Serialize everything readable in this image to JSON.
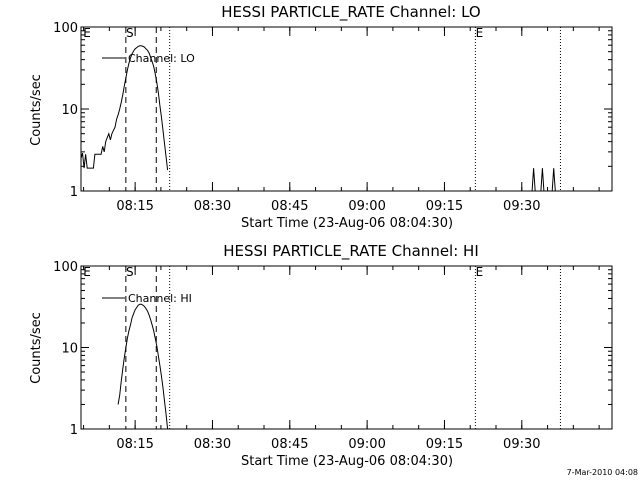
{
  "footer": {
    "timestamp": "7-Mar-2010 04:08"
  },
  "chart_data": [
    {
      "type": "line",
      "title": "HESSI PARTICLE_RATE Channel: LO",
      "xlabel": "Start Time (23-Aug-06 08:04:30)",
      "ylabel": "Counts/sec",
      "yscale": "log",
      "ylim": [
        1,
        100
      ],
      "xlim_minutes": [
        0,
        103
      ],
      "x_ticks": [
        {
          "label": "08:15",
          "t": 10.5
        },
        {
          "label": "08:30",
          "t": 25.5
        },
        {
          "label": "08:45",
          "t": 40.5
        },
        {
          "label": "09:00",
          "t": 55.5
        },
        {
          "label": "09:15",
          "t": 70.5
        },
        {
          "label": "09:30",
          "t": 85.5
        }
      ],
      "y_ticks": [
        {
          "label": "1",
          "v": 1
        },
        {
          "label": "10",
          "v": 10
        },
        {
          "label": "100",
          "v": 100
        }
      ],
      "legend": {
        "label": "Channel: LO",
        "placement": "top-left"
      },
      "markers": [
        {
          "label": "E",
          "t": 0,
          "style": "none"
        },
        {
          "label": "S",
          "t": 8.7,
          "style": "dashed"
        },
        {
          "label": "",
          "t": 14.6,
          "style": "dashed"
        },
        {
          "label": "",
          "t": 17.2,
          "style": "dotted"
        },
        {
          "label": "E",
          "t": 76.5,
          "style": "dotted"
        },
        {
          "label": "",
          "t": 93.0,
          "style": "dotted"
        }
      ],
      "series": [
        {
          "name": "Channel: LO",
          "segments": [
            [
              [
                0,
                2.5
              ],
              [
                0.3,
                2.9
              ],
              [
                0.6,
                1.9
              ],
              [
                0.9,
                2.8
              ],
              [
                1.2,
                1.9
              ],
              [
                1.8,
                1.9
              ],
              [
                2.4,
                1.9
              ],
              [
                2.7,
                2.8
              ],
              [
                3.3,
                2.8
              ],
              [
                3.9,
                2.8
              ],
              [
                4.2,
                3.5
              ],
              [
                4.5,
                3.0
              ],
              [
                4.8,
                4.0
              ],
              [
                5.1,
                4.5
              ],
              [
                5.4,
                5.0
              ],
              [
                5.7,
                4.2
              ],
              [
                6.0,
                5.0
              ],
              [
                6.3,
                5.5
              ],
              [
                6.6,
                6.0
              ],
              [
                6.9,
                7.5
              ],
              [
                7.2,
                8.5
              ],
              [
                7.5,
                10
              ],
              [
                7.8,
                12
              ],
              [
                8.1,
                15
              ],
              [
                8.4,
                19
              ],
              [
                8.7,
                24
              ],
              [
                9.0,
                30
              ],
              [
                9.3,
                36
              ],
              [
                9.6,
                42
              ],
              [
                9.9,
                47
              ],
              [
                10.2,
                51
              ],
              [
                10.5,
                54
              ],
              [
                10.8,
                56
              ],
              [
                11.1,
                58
              ],
              [
                11.4,
                59
              ],
              [
                11.7,
                59
              ],
              [
                12.0,
                58
              ],
              [
                12.3,
                57
              ],
              [
                12.6,
                54
              ],
              [
                12.9,
                52
              ],
              [
                13.2,
                48
              ],
              [
                13.5,
                43
              ],
              [
                13.8,
                38
              ],
              [
                14.1,
                33
              ],
              [
                14.4,
                27
              ],
              [
                14.7,
                21
              ],
              [
                15.0,
                16
              ],
              [
                15.3,
                11
              ],
              [
                15.6,
                8.0
              ],
              [
                15.9,
                5.5
              ],
              [
                16.2,
                3.8
              ],
              [
                16.5,
                2.6
              ],
              [
                16.8,
                1.8
              ]
            ],
            [
              [
                87.5,
                1.0
              ],
              [
                87.8,
                1.9
              ],
              [
                88.1,
                1.0
              ]
            ],
            [
              [
                89.2,
                1.0
              ],
              [
                89.5,
                1.9
              ],
              [
                89.8,
                1.0
              ]
            ],
            [
              [
                91.4,
                1.0
              ],
              [
                91.7,
                1.9
              ],
              [
                92.0,
                1.0
              ]
            ]
          ]
        }
      ]
    },
    {
      "type": "line",
      "title": "HESSI PARTICLE_RATE Channel: HI",
      "xlabel": "Start Time (23-Aug-06 08:04:30)",
      "ylabel": "Counts/sec",
      "yscale": "log",
      "ylim": [
        1,
        100
      ],
      "xlim_minutes": [
        0,
        103
      ],
      "x_ticks": [
        {
          "label": "08:15",
          "t": 10.5
        },
        {
          "label": "08:30",
          "t": 25.5
        },
        {
          "label": "08:45",
          "t": 40.5
        },
        {
          "label": "09:00",
          "t": 55.5
        },
        {
          "label": "09:15",
          "t": 70.5
        },
        {
          "label": "09:30",
          "t": 85.5
        }
      ],
      "y_ticks": [
        {
          "label": "1",
          "v": 1
        },
        {
          "label": "10",
          "v": 10
        },
        {
          "label": "100",
          "v": 100
        }
      ],
      "legend": {
        "label": "Channel: HI",
        "placement": "top-left"
      },
      "markers": [
        {
          "label": "E",
          "t": 0,
          "style": "none"
        },
        {
          "label": "S",
          "t": 8.7,
          "style": "dashed"
        },
        {
          "label": "",
          "t": 14.6,
          "style": "dashed"
        },
        {
          "label": "",
          "t": 17.2,
          "style": "dotted"
        },
        {
          "label": "E",
          "t": 76.5,
          "style": "dotted"
        },
        {
          "label": "",
          "t": 93.0,
          "style": "dotted"
        }
      ],
      "series": [
        {
          "name": "Channel: HI",
          "segments": [
            [
              [
                7.2,
                2.0
              ],
              [
                7.5,
                2.6
              ],
              [
                7.8,
                3.8
              ],
              [
                8.1,
                5.5
              ],
              [
                8.4,
                7.5
              ],
              [
                8.7,
                10
              ],
              [
                9.0,
                13
              ],
              [
                9.3,
                16
              ],
              [
                9.6,
                19
              ],
              [
                9.9,
                23
              ],
              [
                10.2,
                26
              ],
              [
                10.5,
                29
              ],
              [
                10.8,
                31
              ],
              [
                11.1,
                33
              ],
              [
                11.4,
                34
              ],
              [
                11.7,
                34
              ],
              [
                12.0,
                33
              ],
              [
                12.3,
                32
              ],
              [
                12.6,
                30
              ],
              [
                12.9,
                28
              ],
              [
                13.2,
                25
              ],
              [
                13.5,
                22
              ],
              [
                13.8,
                19
              ],
              [
                14.1,
                16
              ],
              [
                14.4,
                13
              ],
              [
                14.7,
                10.5
              ],
              [
                15.0,
                8.0
              ],
              [
                15.3,
                6.0
              ],
              [
                15.6,
                4.5
              ],
              [
                15.9,
                3.2
              ],
              [
                16.2,
                2.2
              ],
              [
                16.5,
                1.5
              ],
              [
                16.8,
                1.0
              ]
            ]
          ]
        }
      ]
    }
  ]
}
